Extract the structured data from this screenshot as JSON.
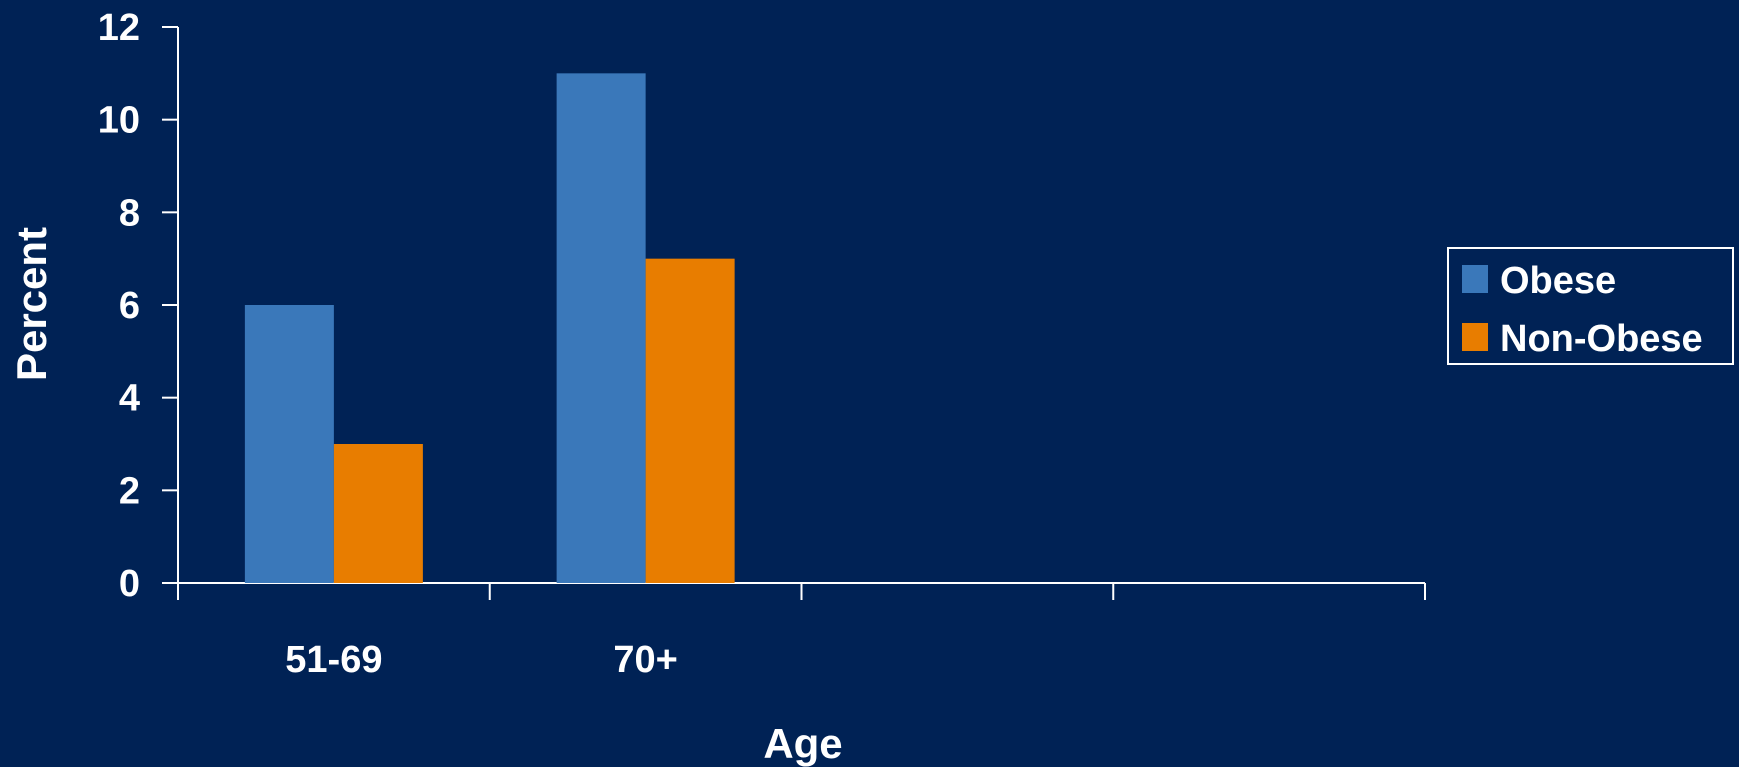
{
  "chart_data": {
    "type": "bar",
    "title": "",
    "xlabel": "Age",
    "ylabel": "Percent",
    "categories": [
      "51-69",
      "70+",
      "",
      ""
    ],
    "series": [
      {
        "name": "Obese",
        "values": [
          6,
          11,
          null,
          null
        ],
        "color": "#3a78ba"
      },
      {
        "name": "Non-Obese",
        "values": [
          3,
          7,
          null,
          null
        ],
        "color": "#e87d00"
      }
    ],
    "ylim": [
      0,
      12
    ],
    "yticks": [
      0,
      2,
      4,
      6,
      8,
      10,
      12
    ],
    "grid": false,
    "legend_position": "right"
  },
  "colors": {
    "background": "#002255",
    "axis": "#ffffff",
    "text": "#ffffff"
  }
}
